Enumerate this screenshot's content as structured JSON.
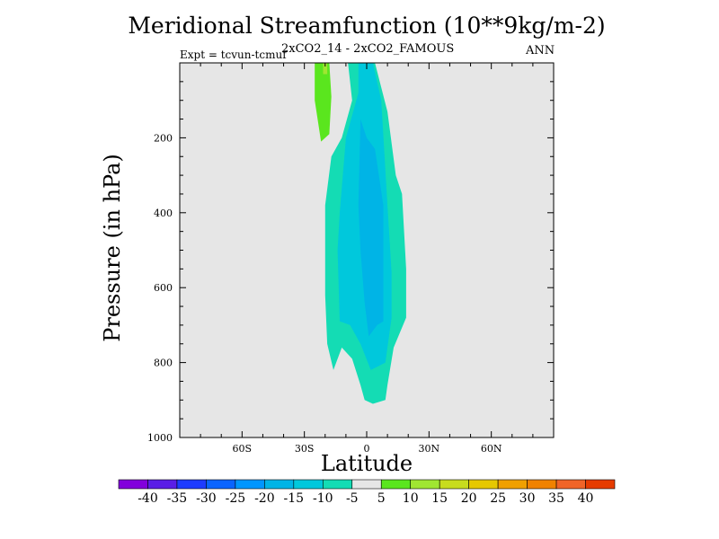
{
  "chart_data": {
    "type": "contour",
    "title": "Meridional Streamfunction (10**9kg/m-2)",
    "subtitle": "2xCO2_14 - 2xCO2_FAMOUS",
    "left_label": "Expt = tcvun-tcmuf",
    "right_label": "ANN",
    "xlabel": "Latitude",
    "ylabel": "Pressure (in hPa)",
    "xlim": [
      -90,
      90
    ],
    "ylim": [
      1000,
      0
    ],
    "x_ticks": [
      {
        "value": -60,
        "label": "60S"
      },
      {
        "value": -30,
        "label": "30S"
      },
      {
        "value": 0,
        "label": "0"
      },
      {
        "value": 30,
        "label": "30N"
      },
      {
        "value": 60,
        "label": "60N"
      }
    ],
    "y_ticks": [
      {
        "value": 200,
        "label": "200"
      },
      {
        "value": 400,
        "label": "400"
      },
      {
        "value": 600,
        "label": "600"
      },
      {
        "value": 800,
        "label": "800"
      },
      {
        "value": 1000,
        "label": "1000"
      }
    ],
    "background_color": "#e6e6e6",
    "contour_regions": [
      {
        "name": "region-10-to-5",
        "level_range": [
          -10,
          -5
        ],
        "color": "#14dcb4",
        "points": [
          [
            -20,
            380
          ],
          [
            -17,
            250
          ],
          [
            -12,
            200
          ],
          [
            -7,
            100
          ],
          [
            -9,
            0
          ],
          [
            4,
            0
          ],
          [
            10,
            130
          ],
          [
            14,
            300
          ],
          [
            17,
            350
          ],
          [
            19,
            550
          ],
          [
            19,
            680
          ],
          [
            13,
            760
          ],
          [
            10,
            860
          ],
          [
            9,
            900
          ],
          [
            3,
            910
          ],
          [
            -1,
            900
          ],
          [
            -3,
            860
          ],
          [
            -7,
            790
          ],
          [
            -12,
            760
          ],
          [
            -16,
            820
          ],
          [
            -19,
            750
          ],
          [
            -20,
            620
          ]
        ]
      },
      {
        "name": "region-15-to-10",
        "level_range": [
          -15,
          -10
        ],
        "color": "#00c8dc",
        "points": [
          [
            -13,
            400
          ],
          [
            -10,
            200
          ],
          [
            -4,
            80
          ],
          [
            -4,
            0
          ],
          [
            3,
            0
          ],
          [
            7,
            100
          ],
          [
            10,
            380
          ],
          [
            12,
            560
          ],
          [
            12,
            680
          ],
          [
            9,
            800
          ],
          [
            2,
            820
          ],
          [
            -3,
            750
          ],
          [
            -8,
            700
          ],
          [
            -13,
            690
          ],
          [
            -14,
            500
          ]
        ]
      },
      {
        "name": "region-20-to-15",
        "level_range": [
          -20,
          -15
        ],
        "color": "#00b4e6",
        "points": [
          [
            -3,
            150
          ],
          [
            0,
            200
          ],
          [
            4,
            230
          ],
          [
            8,
            380
          ],
          [
            8,
            690
          ],
          [
            5,
            700
          ],
          [
            1,
            730
          ],
          [
            -1,
            640
          ],
          [
            -3,
            500
          ],
          [
            -4,
            380
          ]
        ]
      },
      {
        "name": "region-5-to-10",
        "level_range": [
          5,
          10
        ],
        "color": "#5ae61e",
        "points": [
          [
            -25,
            0
          ],
          [
            -18,
            0
          ],
          [
            -17,
            90
          ],
          [
            -18,
            190
          ],
          [
            -22,
            210
          ],
          [
            -25,
            100
          ]
        ]
      },
      {
        "name": "region-10-to-15",
        "level_range": [
          10,
          15
        ],
        "color": "#a0e632",
        "points": [
          [
            -21,
            0
          ],
          [
            -19,
            0
          ],
          [
            -19,
            30
          ],
          [
            -21,
            30
          ]
        ]
      }
    ],
    "colorbar": {
      "levels": [
        -40,
        -35,
        -30,
        -25,
        -20,
        -15,
        -10,
        -5,
        5,
        10,
        15,
        20,
        25,
        30,
        35,
        40
      ],
      "labels": [
        "-40",
        "-35",
        "-30",
        "-25",
        "-20",
        "-15",
        "-10",
        "-5",
        "5",
        "10",
        "15",
        "20",
        "25",
        "30",
        "35",
        "40"
      ],
      "colors": [
        "#8200dc",
        "#5a1ee6",
        "#1e3cff",
        "#0a64ff",
        "#0096ff",
        "#00b4e6",
        "#00c8dc",
        "#14dcb4",
        "#e6e6e6",
        "#5ae61e",
        "#a0e632",
        "#c8dc1e",
        "#e6c800",
        "#f0a000",
        "#f08200",
        "#f06428",
        "#e63c00"
      ]
    }
  }
}
